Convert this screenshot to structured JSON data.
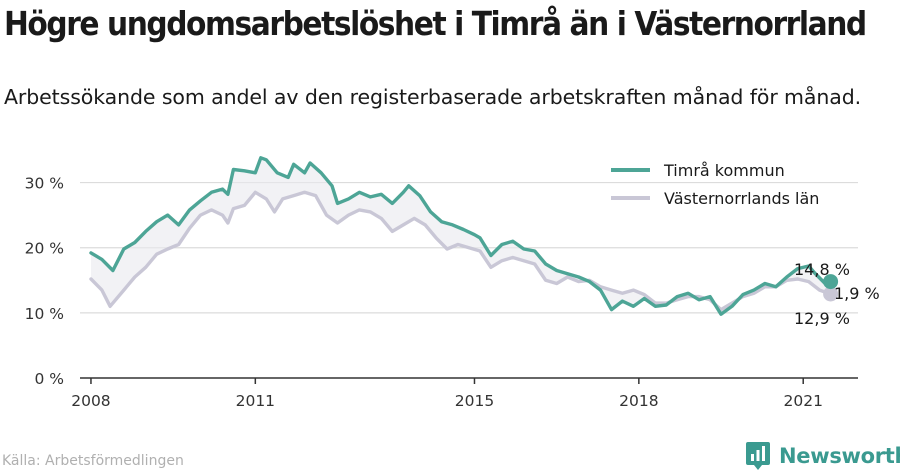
{
  "title": "Högre ungdomsarbetslöshet i Timrå än i Västernorrland",
  "subtitle": "Arbetssökande som andel av den registerbaserade arbetskraften månad för månad.",
  "source": "Källa: Arbetsförmedlingen",
  "brand": {
    "name": "Newsworthy",
    "icon": "newsworthy-logo-icon"
  },
  "colors": {
    "timra": "#4da596",
    "lan": "#c9c7d6",
    "gap_fill": "#e9e9ee",
    "grid": "#dcdcdc",
    "axis": "#333333"
  },
  "chart_data": {
    "type": "line",
    "xlabel": "",
    "ylabel": "",
    "x_ticks": [
      "2008",
      "2011",
      "2015",
      "2018",
      "2021"
    ],
    "y_ticks": [
      "0 %",
      "10 %",
      "20 %",
      "30 %"
    ],
    "ylim": [
      0,
      35
    ],
    "xlim": [
      2007.8,
      2022.0
    ],
    "legend_position": "top-right",
    "grid": "horizontal",
    "series": [
      {
        "name": "Timrå kommun",
        "points": [
          [
            2008.0,
            19.2
          ],
          [
            2008.2,
            18.2
          ],
          [
            2008.4,
            16.5
          ],
          [
            2008.6,
            19.8
          ],
          [
            2008.8,
            20.8
          ],
          [
            2009.0,
            22.5
          ],
          [
            2009.2,
            24.0
          ],
          [
            2009.4,
            25.0
          ],
          [
            2009.6,
            23.5
          ],
          [
            2009.8,
            25.8
          ],
          [
            2010.0,
            27.2
          ],
          [
            2010.2,
            28.5
          ],
          [
            2010.4,
            29.0
          ],
          [
            2010.5,
            28.2
          ],
          [
            2010.6,
            32.0
          ],
          [
            2010.8,
            31.8
          ],
          [
            2011.0,
            31.5
          ],
          [
            2011.1,
            33.8
          ],
          [
            2011.2,
            33.5
          ],
          [
            2011.4,
            31.5
          ],
          [
            2011.6,
            30.8
          ],
          [
            2011.7,
            32.8
          ],
          [
            2011.9,
            31.5
          ],
          [
            2012.0,
            33.0
          ],
          [
            2012.2,
            31.5
          ],
          [
            2012.4,
            29.5
          ],
          [
            2012.5,
            26.8
          ],
          [
            2012.7,
            27.5
          ],
          [
            2012.9,
            28.5
          ],
          [
            2013.1,
            27.8
          ],
          [
            2013.3,
            28.2
          ],
          [
            2013.5,
            26.8
          ],
          [
            2013.7,
            28.5
          ],
          [
            2013.8,
            29.5
          ],
          [
            2014.0,
            28.0
          ],
          [
            2014.2,
            25.5
          ],
          [
            2014.4,
            24.0
          ],
          [
            2014.6,
            23.5
          ],
          [
            2014.8,
            22.8
          ],
          [
            2015.0,
            22.0
          ],
          [
            2015.1,
            21.5
          ],
          [
            2015.3,
            18.8
          ],
          [
            2015.5,
            20.5
          ],
          [
            2015.7,
            21.0
          ],
          [
            2015.9,
            19.8
          ],
          [
            2016.1,
            19.5
          ],
          [
            2016.3,
            17.5
          ],
          [
            2016.5,
            16.5
          ],
          [
            2016.7,
            16.0
          ],
          [
            2016.9,
            15.5
          ],
          [
            2017.1,
            14.8
          ],
          [
            2017.3,
            13.5
          ],
          [
            2017.5,
            10.5
          ],
          [
            2017.7,
            11.8
          ],
          [
            2017.9,
            11.0
          ],
          [
            2018.1,
            12.2
          ],
          [
            2018.3,
            11.0
          ],
          [
            2018.5,
            11.2
          ],
          [
            2018.7,
            12.5
          ],
          [
            2018.9,
            13.0
          ],
          [
            2019.1,
            12.0
          ],
          [
            2019.3,
            12.5
          ],
          [
            2019.5,
            9.8
          ],
          [
            2019.7,
            11.0
          ],
          [
            2019.9,
            12.8
          ],
          [
            2020.1,
            13.5
          ],
          [
            2020.3,
            14.5
          ],
          [
            2020.5,
            14.0
          ],
          [
            2020.7,
            15.5
          ],
          [
            2020.9,
            16.8
          ],
          [
            2021.1,
            17.2
          ],
          [
            2021.2,
            16.2
          ],
          [
            2021.4,
            14.5
          ],
          [
            2021.5,
            14.8
          ]
        ]
      },
      {
        "name": "Västernorrlands län",
        "points": [
          [
            2008.0,
            15.2
          ],
          [
            2008.2,
            13.5
          ],
          [
            2008.35,
            11.0
          ],
          [
            2008.6,
            13.5
          ],
          [
            2008.8,
            15.5
          ],
          [
            2009.0,
            17.0
          ],
          [
            2009.2,
            19.0
          ],
          [
            2009.4,
            19.8
          ],
          [
            2009.6,
            20.5
          ],
          [
            2009.8,
            23.0
          ],
          [
            2010.0,
            25.0
          ],
          [
            2010.2,
            25.8
          ],
          [
            2010.4,
            25.0
          ],
          [
            2010.5,
            23.8
          ],
          [
            2010.6,
            26.0
          ],
          [
            2010.8,
            26.5
          ],
          [
            2011.0,
            28.5
          ],
          [
            2011.2,
            27.5
          ],
          [
            2011.35,
            25.5
          ],
          [
            2011.5,
            27.5
          ],
          [
            2011.7,
            28.0
          ],
          [
            2011.9,
            28.5
          ],
          [
            2012.1,
            28.0
          ],
          [
            2012.3,
            25.0
          ],
          [
            2012.5,
            23.8
          ],
          [
            2012.7,
            25.0
          ],
          [
            2012.9,
            25.8
          ],
          [
            2013.1,
            25.5
          ],
          [
            2013.3,
            24.5
          ],
          [
            2013.5,
            22.5
          ],
          [
            2013.7,
            23.5
          ],
          [
            2013.9,
            24.5
          ],
          [
            2014.1,
            23.5
          ],
          [
            2014.3,
            21.5
          ],
          [
            2014.5,
            19.8
          ],
          [
            2014.7,
            20.5
          ],
          [
            2014.9,
            20.0
          ],
          [
            2015.1,
            19.5
          ],
          [
            2015.3,
            17.0
          ],
          [
            2015.5,
            18.0
          ],
          [
            2015.7,
            18.5
          ],
          [
            2015.9,
            18.0
          ],
          [
            2016.1,
            17.5
          ],
          [
            2016.3,
            15.0
          ],
          [
            2016.5,
            14.5
          ],
          [
            2016.7,
            15.5
          ],
          [
            2016.9,
            14.8
          ],
          [
            2017.1,
            15.0
          ],
          [
            2017.3,
            14.0
          ],
          [
            2017.5,
            13.5
          ],
          [
            2017.7,
            13.0
          ],
          [
            2017.9,
            13.5
          ],
          [
            2018.1,
            12.8
          ],
          [
            2018.3,
            11.5
          ],
          [
            2018.5,
            11.5
          ],
          [
            2018.7,
            12.0
          ],
          [
            2018.9,
            12.5
          ],
          [
            2019.1,
            12.5
          ],
          [
            2019.3,
            12.0
          ],
          [
            2019.5,
            10.5
          ],
          [
            2019.7,
            11.5
          ],
          [
            2019.9,
            12.5
          ],
          [
            2020.1,
            13.0
          ],
          [
            2020.3,
            14.0
          ],
          [
            2020.5,
            14.0
          ],
          [
            2020.7,
            15.0
          ],
          [
            2020.9,
            15.2
          ],
          [
            2021.1,
            14.8
          ],
          [
            2021.3,
            13.5
          ],
          [
            2021.5,
            12.9
          ]
        ]
      }
    ],
    "annotations": [
      {
        "label": "14,8 %",
        "series": "Timrå kommun",
        "value": 14.8
      },
      {
        "label": "12,9 %",
        "series": "Västernorrlands län",
        "value": 12.9
      },
      {
        "label": "1,9 %",
        "kind": "difference",
        "value": 1.9
      }
    ]
  }
}
